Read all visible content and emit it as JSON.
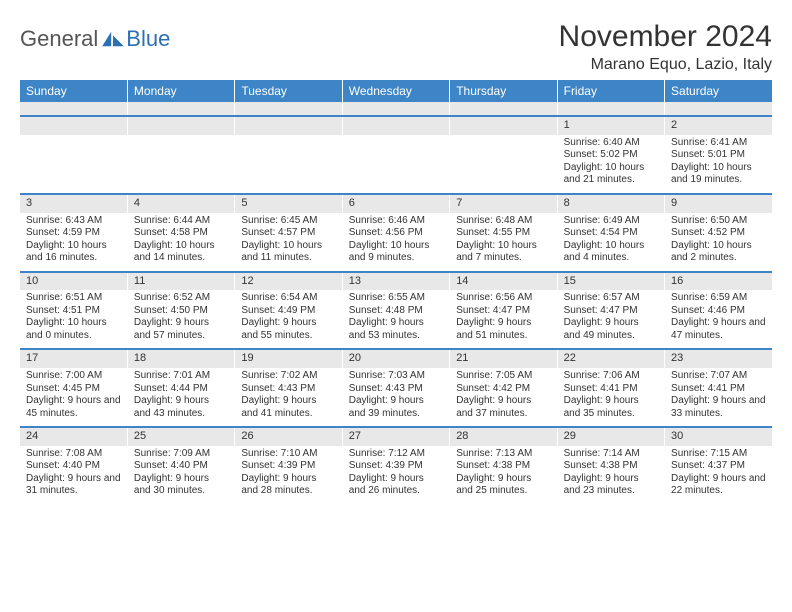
{
  "logo": {
    "text1": "General",
    "text2": "Blue"
  },
  "header": {
    "title": "November 2024",
    "location": "Marano Equo, Lazio, Italy"
  },
  "colors": {
    "header_bg": "#3d85c6",
    "header_fg": "#ffffff",
    "daynum_bg": "#e8e8e8",
    "rule": "#3d85c6"
  },
  "weekdays": [
    "Sunday",
    "Monday",
    "Tuesday",
    "Wednesday",
    "Thursday",
    "Friday",
    "Saturday"
  ],
  "first_weekday_index": 5,
  "days": [
    {
      "n": "1",
      "sunrise": "6:40 AM",
      "sunset": "5:02 PM",
      "daylight": "10 hours and 21 minutes."
    },
    {
      "n": "2",
      "sunrise": "6:41 AM",
      "sunset": "5:01 PM",
      "daylight": "10 hours and 19 minutes."
    },
    {
      "n": "3",
      "sunrise": "6:43 AM",
      "sunset": "4:59 PM",
      "daylight": "10 hours and 16 minutes."
    },
    {
      "n": "4",
      "sunrise": "6:44 AM",
      "sunset": "4:58 PM",
      "daylight": "10 hours and 14 minutes."
    },
    {
      "n": "5",
      "sunrise": "6:45 AM",
      "sunset": "4:57 PM",
      "daylight": "10 hours and 11 minutes."
    },
    {
      "n": "6",
      "sunrise": "6:46 AM",
      "sunset": "4:56 PM",
      "daylight": "10 hours and 9 minutes."
    },
    {
      "n": "7",
      "sunrise": "6:48 AM",
      "sunset": "4:55 PM",
      "daylight": "10 hours and 7 minutes."
    },
    {
      "n": "8",
      "sunrise": "6:49 AM",
      "sunset": "4:54 PM",
      "daylight": "10 hours and 4 minutes."
    },
    {
      "n": "9",
      "sunrise": "6:50 AM",
      "sunset": "4:52 PM",
      "daylight": "10 hours and 2 minutes."
    },
    {
      "n": "10",
      "sunrise": "6:51 AM",
      "sunset": "4:51 PM",
      "daylight": "10 hours and 0 minutes."
    },
    {
      "n": "11",
      "sunrise": "6:52 AM",
      "sunset": "4:50 PM",
      "daylight": "9 hours and 57 minutes."
    },
    {
      "n": "12",
      "sunrise": "6:54 AM",
      "sunset": "4:49 PM",
      "daylight": "9 hours and 55 minutes."
    },
    {
      "n": "13",
      "sunrise": "6:55 AM",
      "sunset": "4:48 PM",
      "daylight": "9 hours and 53 minutes."
    },
    {
      "n": "14",
      "sunrise": "6:56 AM",
      "sunset": "4:47 PM",
      "daylight": "9 hours and 51 minutes."
    },
    {
      "n": "15",
      "sunrise": "6:57 AM",
      "sunset": "4:47 PM",
      "daylight": "9 hours and 49 minutes."
    },
    {
      "n": "16",
      "sunrise": "6:59 AM",
      "sunset": "4:46 PM",
      "daylight": "9 hours and 47 minutes."
    },
    {
      "n": "17",
      "sunrise": "7:00 AM",
      "sunset": "4:45 PM",
      "daylight": "9 hours and 45 minutes."
    },
    {
      "n": "18",
      "sunrise": "7:01 AM",
      "sunset": "4:44 PM",
      "daylight": "9 hours and 43 minutes."
    },
    {
      "n": "19",
      "sunrise": "7:02 AM",
      "sunset": "4:43 PM",
      "daylight": "9 hours and 41 minutes."
    },
    {
      "n": "20",
      "sunrise": "7:03 AM",
      "sunset": "4:43 PM",
      "daylight": "9 hours and 39 minutes."
    },
    {
      "n": "21",
      "sunrise": "7:05 AM",
      "sunset": "4:42 PM",
      "daylight": "9 hours and 37 minutes."
    },
    {
      "n": "22",
      "sunrise": "7:06 AM",
      "sunset": "4:41 PM",
      "daylight": "9 hours and 35 minutes."
    },
    {
      "n": "23",
      "sunrise": "7:07 AM",
      "sunset": "4:41 PM",
      "daylight": "9 hours and 33 minutes."
    },
    {
      "n": "24",
      "sunrise": "7:08 AM",
      "sunset": "4:40 PM",
      "daylight": "9 hours and 31 minutes."
    },
    {
      "n": "25",
      "sunrise": "7:09 AM",
      "sunset": "4:40 PM",
      "daylight": "9 hours and 30 minutes."
    },
    {
      "n": "26",
      "sunrise": "7:10 AM",
      "sunset": "4:39 PM",
      "daylight": "9 hours and 28 minutes."
    },
    {
      "n": "27",
      "sunrise": "7:12 AM",
      "sunset": "4:39 PM",
      "daylight": "9 hours and 26 minutes."
    },
    {
      "n": "28",
      "sunrise": "7:13 AM",
      "sunset": "4:38 PM",
      "daylight": "9 hours and 25 minutes."
    },
    {
      "n": "29",
      "sunrise": "7:14 AM",
      "sunset": "4:38 PM",
      "daylight": "9 hours and 23 minutes."
    },
    {
      "n": "30",
      "sunrise": "7:15 AM",
      "sunset": "4:37 PM",
      "daylight": "9 hours and 22 minutes."
    }
  ],
  "labels": {
    "sunrise": "Sunrise: ",
    "sunset": "Sunset: ",
    "daylight": "Daylight: "
  }
}
